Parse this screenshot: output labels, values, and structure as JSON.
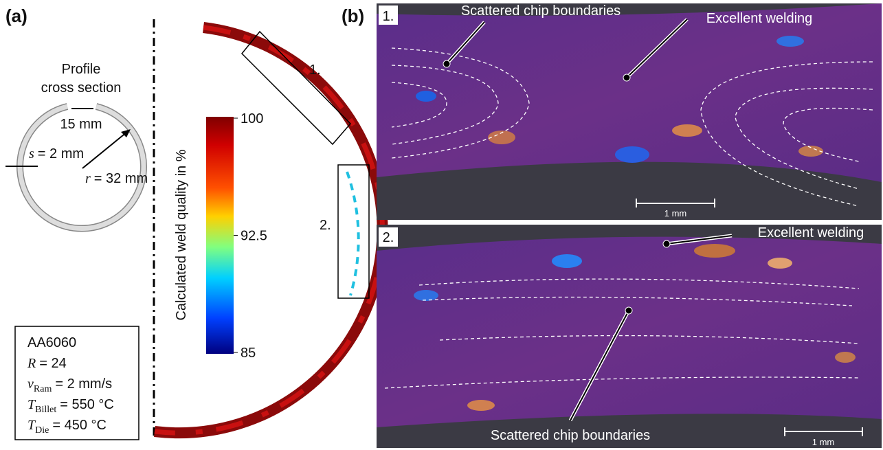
{
  "panel_a": {
    "label": "(a)",
    "profile_title": [
      "Profile",
      "cross section"
    ],
    "gap": "15 mm",
    "thickness": {
      "symbol": "s",
      "text": "= 2 mm"
    },
    "radius": {
      "symbol": "r",
      "text": "= 32 mm"
    },
    "regions": [
      "1.",
      "2."
    ],
    "colorbar": {
      "label": "Calculated weld quality in %",
      "lim": [
        85,
        100
      ],
      "ticks": [
        100,
        92.5,
        85
      ]
    },
    "material": "AA6060",
    "params": [
      {
        "symbol": "R",
        "text": "= 24"
      },
      {
        "symbol": "v",
        "sub": "Ram",
        "text": "= 2 mm/s"
      },
      {
        "symbol": "T",
        "sub": "Billet",
        "text": "= 550 °C"
      },
      {
        "symbol": "T",
        "sub": "Die",
        "text": "= 450 °C"
      }
    ]
  },
  "panel_b": {
    "label": "(b)",
    "images": [
      {
        "index": "1.",
        "annotations": [
          "Scattered chip boundaries",
          "Excellent welding"
        ],
        "scale": "1 mm"
      },
      {
        "index": "2.",
        "annotations": [
          "Excellent welding",
          "Scattered chip boundaries"
        ],
        "scale": "1 mm"
      }
    ]
  }
}
